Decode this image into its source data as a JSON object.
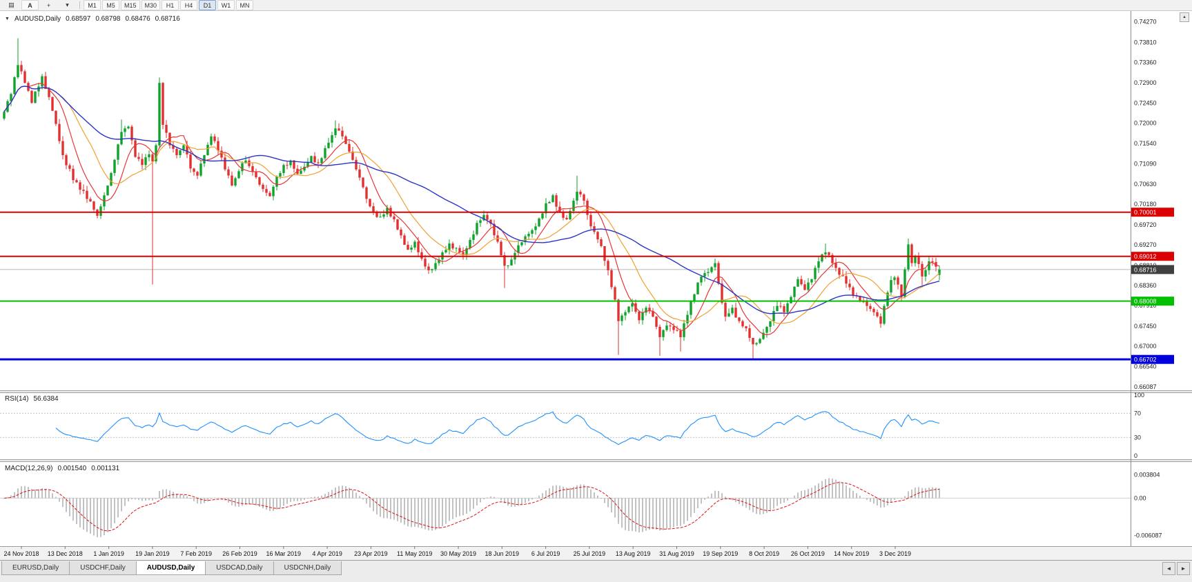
{
  "icons": {
    "chart_glyph": "▤",
    "annotate": "A",
    "crosshair": "+",
    "caret": "▾",
    "collapse": "▼",
    "tab_left": "◄",
    "tab_right": "►",
    "axis_btn": "▲"
  },
  "toolbar": {
    "timeframes": [
      {
        "label": "M1",
        "active": false
      },
      {
        "label": "M5",
        "active": false
      },
      {
        "label": "M15",
        "active": false
      },
      {
        "label": "M30",
        "active": false
      },
      {
        "label": "H1",
        "active": false
      },
      {
        "label": "H4",
        "active": false
      },
      {
        "label": "D1",
        "active": true
      },
      {
        "label": "W1",
        "active": false
      },
      {
        "label": "MN",
        "active": false
      }
    ]
  },
  "chart": {
    "symbol_display": "AUDUSD,Daily",
    "ohlc": {
      "open": "0.68597",
      "high": "0.68798",
      "low": "0.68476",
      "close": "0.68716"
    },
    "price_axis_ticks": [
      "0.74270",
      "0.73810",
      "0.73360",
      "0.72900",
      "0.72450",
      "0.72000",
      "0.71540",
      "0.71090",
      "0.70630",
      "0.70180",
      "0.69720",
      "0.69270",
      "0.68810",
      "0.68360",
      "0.67910",
      "0.67450",
      "0.67000",
      "0.66540",
      "0.66087"
    ],
    "dates": [
      "24 Nov 2018",
      "13 Dec 2018",
      "1 Jan 2019",
      "19 Jan 2019",
      "7 Feb 2019",
      "26 Feb 2019",
      "16 Mar 2019",
      "4 Apr 2019",
      "23 Apr 2019",
      "11 May 2019",
      "30 May 2019",
      "18 Jun 2019",
      "6 Jul 2019",
      "25 Jul 2019",
      "13 Aug 2019",
      "31 Aug 2019",
      "19 Sep 2019",
      "8 Oct 2019",
      "26 Oct 2019",
      "14 Nov 2019",
      "3 Dec 2019"
    ],
    "hlines": [
      {
        "price": 0.70001,
        "label": "0.70001",
        "color": "#dd0000",
        "width": 2
      },
      {
        "price": 0.69012,
        "label": "0.69012",
        "color": "#dd0000",
        "width": 2
      },
      {
        "price": 0.68008,
        "label": "0.68008",
        "color": "#00c000",
        "width": 2
      },
      {
        "price": 0.66702,
        "label": "0.66702",
        "color": "#0000dd",
        "width": 3
      }
    ],
    "current_price": {
      "price": 0.68716,
      "label": "0.68716",
      "line_color": "#b8b8b8",
      "label_bg": "#3f3f3f"
    }
  },
  "rsi": {
    "name": "RSI(14)",
    "value": "56.6384",
    "period": 14,
    "levels": [
      "100",
      "70",
      "30",
      "0"
    ],
    "level_values": [
      100,
      70,
      30,
      0
    ],
    "dashed_levels": [
      70,
      30
    ],
    "line_color": "#1e90ff"
  },
  "macd": {
    "name": "MACD(12,26,9)",
    "value_main": "0.001540",
    "value_signal": "0.001131",
    "fast": 12,
    "slow": 26,
    "signal": 9,
    "axis_label_strings": [
      "0.003804",
      "0.00",
      "-0.006087"
    ],
    "axis_labels": [
      0.003804,
      0.0,
      -0.006087
    ],
    "histogram_color": "#b2b2b2",
    "signal_color": "#dd1111"
  },
  "tabs": [
    {
      "label": "EURUSD,Daily",
      "active": false
    },
    {
      "label": "USDCHF,Daily",
      "active": false
    },
    {
      "label": "AUDUSD,Daily",
      "active": true
    },
    {
      "label": "USDCAD,Daily",
      "active": false
    },
    {
      "label": "USDCNH,Daily",
      "active": false
    }
  ],
  "chart_data": {
    "type": "candlestick",
    "symbol": "AUDUSD",
    "timeframe": "Daily",
    "bars": 272,
    "up_color": "#0fa32b",
    "down_color": "#e03131",
    "price_range": {
      "top": 0.74448,
      "bottom": 0.66071
    },
    "last": {
      "o": 0.68597,
      "h": 0.68798,
      "l": 0.68476,
      "c": 0.68716
    },
    "moving_averages": [
      {
        "period": 8,
        "color": "#e83535",
        "width": 1.2
      },
      {
        "period": 17,
        "color": "#f0a030",
        "width": 1.2
      },
      {
        "period": 45,
        "color": "#2a35c8",
        "width": 1.4
      }
    ],
    "close_anchors": [
      [
        0,
        0.7225
      ],
      [
        2,
        0.7265
      ],
      [
        4,
        0.733
      ],
      [
        6,
        0.729
      ],
      [
        8,
        0.7245
      ],
      [
        11,
        0.7305
      ],
      [
        13,
        0.7258
      ],
      [
        15,
        0.7198
      ],
      [
        17,
        0.7128
      ],
      [
        20,
        0.7072
      ],
      [
        23,
        0.7048
      ],
      [
        26,
        0.7006
      ],
      [
        27,
        0.6992
      ],
      [
        29,
        0.7038
      ],
      [
        31,
        0.7088
      ],
      [
        34,
        0.718
      ],
      [
        36,
        0.7192
      ],
      [
        38,
        0.7124
      ],
      [
        40,
        0.7106
      ],
      [
        42,
        0.713
      ],
      [
        43,
        0.7114
      ],
      [
        44,
        0.715
      ],
      [
        45,
        0.729
      ],
      [
        46,
        0.7196
      ],
      [
        48,
        0.715
      ],
      [
        50,
        0.7128
      ],
      [
        52,
        0.715
      ],
      [
        54,
        0.7098
      ],
      [
        56,
        0.7082
      ],
      [
        58,
        0.7128
      ],
      [
        60,
        0.717
      ],
      [
        62,
        0.7138
      ],
      [
        64,
        0.7096
      ],
      [
        66,
        0.706
      ],
      [
        68,
        0.7092
      ],
      [
        70,
        0.7116
      ],
      [
        72,
        0.709
      ],
      [
        75,
        0.7052
      ],
      [
        77,
        0.7036
      ],
      [
        79,
        0.708
      ],
      [
        81,
        0.7106
      ],
      [
        83,
        0.7116
      ],
      [
        85,
        0.7086
      ],
      [
        87,
        0.7102
      ],
      [
        89,
        0.7126
      ],
      [
        91,
        0.711
      ],
      [
        94,
        0.7156
      ],
      [
        96,
        0.7188
      ],
      [
        98,
        0.717
      ],
      [
        100,
        0.7136
      ],
      [
        102,
        0.7096
      ],
      [
        104,
        0.7056
      ],
      [
        105,
        0.703
      ],
      [
        107,
        0.7
      ],
      [
        109,
        0.699
      ],
      [
        111,
        0.701
      ],
      [
        113,
        0.6984
      ],
      [
        115,
        0.6948
      ],
      [
        117,
        0.6916
      ],
      [
        119,
        0.6934
      ],
      [
        121,
        0.6896
      ],
      [
        123,
        0.687
      ],
      [
        125,
        0.6886
      ],
      [
        127,
        0.691
      ],
      [
        129,
        0.693
      ],
      [
        131,
        0.692
      ],
      [
        133,
        0.6904
      ],
      [
        135,
        0.6938
      ],
      [
        137,
        0.6976
      ],
      [
        139,
        0.6994
      ],
      [
        141,
        0.6974
      ],
      [
        143,
        0.6934
      ],
      [
        145,
        0.688
      ],
      [
        147,
        0.6894
      ],
      [
        149,
        0.6926
      ],
      [
        151,
        0.6946
      ],
      [
        153,
        0.696
      ],
      [
        155,
        0.6986
      ],
      [
        157,
        0.702
      ],
      [
        159,
        0.7038
      ],
      [
        161,
        0.7
      ],
      [
        163,
        0.6984
      ],
      [
        165,
        0.7026
      ],
      [
        166,
        0.7046
      ],
      [
        168,
        0.7026
      ],
      [
        169,
        0.6994
      ],
      [
        171,
        0.6956
      ],
      [
        173,
        0.6924
      ],
      [
        175,
        0.687
      ],
      [
        177,
        0.6804
      ],
      [
        178,
        0.6756
      ],
      [
        180,
        0.6776
      ],
      [
        182,
        0.6796
      ],
      [
        184,
        0.6758
      ],
      [
        186,
        0.6786
      ],
      [
        188,
        0.6766
      ],
      [
        190,
        0.672
      ],
      [
        192,
        0.6746
      ],
      [
        194,
        0.6736
      ],
      [
        196,
        0.672
      ],
      [
        198,
        0.677
      ],
      [
        200,
        0.6816
      ],
      [
        202,
        0.6856
      ],
      [
        204,
        0.6866
      ],
      [
        206,
        0.6886
      ],
      [
        207,
        0.684
      ],
      [
        209,
        0.6766
      ],
      [
        211,
        0.6786
      ],
      [
        213,
        0.6756
      ],
      [
        215,
        0.674
      ],
      [
        217,
        0.6704
      ],
      [
        219,
        0.6716
      ],
      [
        220,
        0.673
      ],
      [
        222,
        0.6756
      ],
      [
        224,
        0.679
      ],
      [
        226,
        0.6776
      ],
      [
        228,
        0.681
      ],
      [
        230,
        0.685
      ],
      [
        232,
        0.6826
      ],
      [
        234,
        0.685
      ],
      [
        236,
        0.689
      ],
      [
        238,
        0.691
      ],
      [
        240,
        0.6886
      ],
      [
        242,
        0.686
      ],
      [
        244,
        0.684
      ],
      [
        246,
        0.6814
      ],
      [
        248,
        0.68
      ],
      [
        250,
        0.679
      ],
      [
        252,
        0.6776
      ],
      [
        254,
        0.675
      ],
      [
        256,
        0.682
      ],
      [
        257,
        0.6848
      ],
      [
        258,
        0.6854
      ],
      [
        259,
        0.6838
      ],
      [
        260,
        0.681
      ],
      [
        261,
        0.6872
      ],
      [
        262,
        0.6928
      ],
      [
        263,
        0.6886
      ],
      [
        264,
        0.69
      ],
      [
        265,
        0.6884
      ],
      [
        266,
        0.6856
      ],
      [
        267,
        0.687
      ],
      [
        268,
        0.689
      ],
      [
        270,
        0.6878
      ],
      [
        271,
        0.68716
      ]
    ],
    "wick_overrides": [
      [
        4,
        0.739,
        null
      ],
      [
        27,
        null,
        0.6986
      ],
      [
        34,
        0.7208,
        null
      ],
      [
        43,
        null,
        0.6838
      ],
      [
        45,
        0.7302,
        null
      ],
      [
        96,
        0.7206,
        null
      ],
      [
        123,
        null,
        0.6862
      ],
      [
        145,
        null,
        0.683
      ],
      [
        166,
        0.7082,
        null
      ],
      [
        178,
        null,
        0.668
      ],
      [
        190,
        null,
        0.6678
      ],
      [
        196,
        null,
        0.6688
      ],
      [
        206,
        0.6896,
        null
      ],
      [
        217,
        null,
        0.6671
      ],
      [
        238,
        0.693,
        null
      ],
      [
        262,
        0.6941,
        null
      ],
      [
        266,
        null,
        0.6836
      ]
    ]
  }
}
